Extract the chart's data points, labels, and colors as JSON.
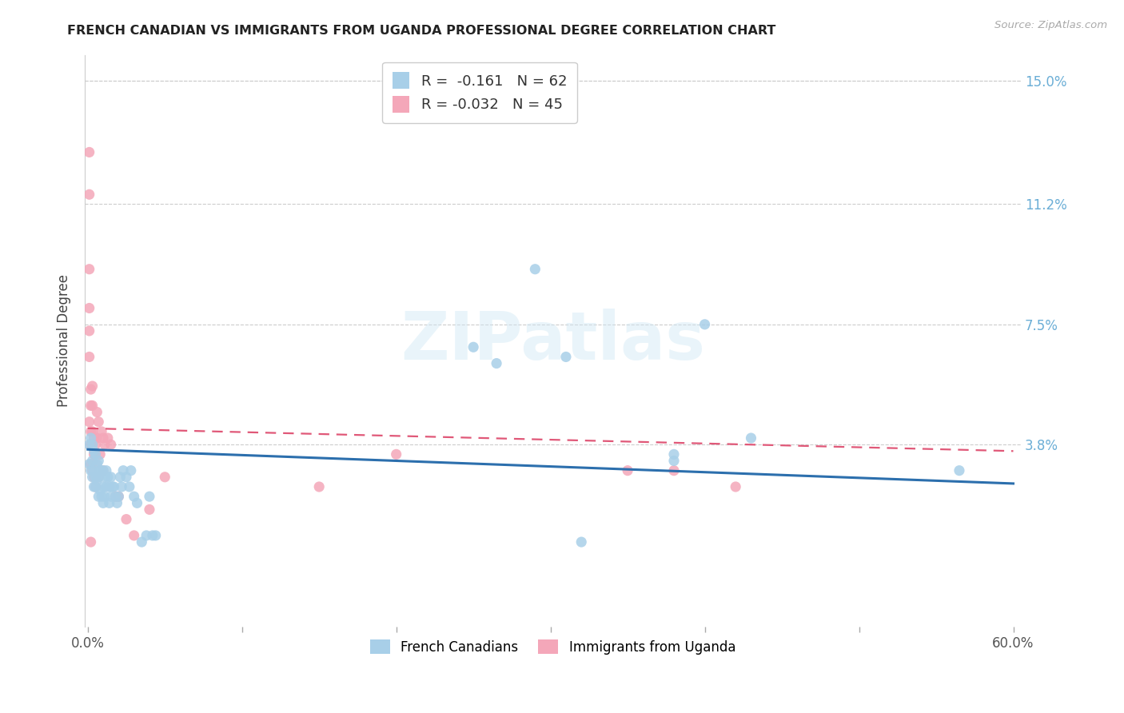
{
  "title": "FRENCH CANADIAN VS IMMIGRANTS FROM UGANDA PROFESSIONAL DEGREE CORRELATION CHART",
  "source": "Source: ZipAtlas.com",
  "ylabel": "Professional Degree",
  "right_ytick_labels": [
    "15.0%",
    "11.2%",
    "7.5%",
    "3.8%"
  ],
  "right_ytick_values": [
    0.15,
    0.112,
    0.075,
    0.038
  ],
  "xmin": -0.002,
  "xmax": 0.605,
  "ymin": -0.018,
  "ymax": 0.158,
  "legend_blue_r": "-0.161",
  "legend_blue_n": "62",
  "legend_pink_r": "-0.032",
  "legend_pink_n": "45",
  "blue_color": "#a8cfe8",
  "pink_color": "#f4a7b9",
  "blue_line_color": "#2c6fad",
  "pink_line_color": "#e05878",
  "blue_trend_x": [
    0.0,
    0.6
  ],
  "blue_trend_y": [
    0.0365,
    0.026
  ],
  "pink_trend_x": [
    0.0,
    0.6
  ],
  "pink_trend_y": [
    0.043,
    0.036
  ],
  "blue_scatter_x": [
    0.001,
    0.001,
    0.002,
    0.002,
    0.003,
    0.003,
    0.003,
    0.004,
    0.004,
    0.004,
    0.005,
    0.005,
    0.005,
    0.006,
    0.006,
    0.007,
    0.007,
    0.007,
    0.008,
    0.008,
    0.009,
    0.009,
    0.01,
    0.01,
    0.01,
    0.011,
    0.011,
    0.012,
    0.012,
    0.013,
    0.014,
    0.014,
    0.015,
    0.015,
    0.016,
    0.017,
    0.018,
    0.019,
    0.02,
    0.021,
    0.022,
    0.023,
    0.025,
    0.027,
    0.028,
    0.03,
    0.032,
    0.035,
    0.038,
    0.04,
    0.042,
    0.044,
    0.25,
    0.265,
    0.29,
    0.31,
    0.38,
    0.4,
    0.43,
    0.565,
    0.38,
    0.32
  ],
  "blue_scatter_y": [
    0.038,
    0.032,
    0.04,
    0.03,
    0.038,
    0.033,
    0.028,
    0.036,
    0.03,
    0.025,
    0.035,
    0.028,
    0.025,
    0.032,
    0.027,
    0.033,
    0.028,
    0.022,
    0.03,
    0.024,
    0.03,
    0.022,
    0.03,
    0.025,
    0.02,
    0.028,
    0.022,
    0.03,
    0.025,
    0.028,
    0.025,
    0.02,
    0.028,
    0.022,
    0.025,
    0.025,
    0.022,
    0.02,
    0.022,
    0.028,
    0.025,
    0.03,
    0.028,
    0.025,
    0.03,
    0.022,
    0.02,
    0.008,
    0.01,
    0.022,
    0.01,
    0.01,
    0.068,
    0.063,
    0.092,
    0.065,
    0.033,
    0.075,
    0.04,
    0.03,
    0.035,
    0.008
  ],
  "pink_scatter_x": [
    0.001,
    0.001,
    0.001,
    0.001,
    0.001,
    0.001,
    0.001,
    0.002,
    0.002,
    0.002,
    0.002,
    0.002,
    0.003,
    0.003,
    0.003,
    0.003,
    0.004,
    0.004,
    0.004,
    0.005,
    0.005,
    0.005,
    0.006,
    0.006,
    0.007,
    0.007,
    0.008,
    0.009,
    0.01,
    0.01,
    0.011,
    0.013,
    0.015,
    0.018,
    0.02,
    0.025,
    0.03,
    0.04,
    0.05,
    0.002,
    0.35,
    0.38,
    0.42,
    0.15,
    0.2
  ],
  "pink_scatter_y": [
    0.128,
    0.115,
    0.092,
    0.08,
    0.073,
    0.065,
    0.045,
    0.055,
    0.05,
    0.042,
    0.038,
    0.032,
    0.056,
    0.05,
    0.042,
    0.03,
    0.04,
    0.035,
    0.028,
    0.038,
    0.032,
    0.025,
    0.048,
    0.04,
    0.045,
    0.028,
    0.035,
    0.042,
    0.04,
    0.03,
    0.038,
    0.04,
    0.038,
    0.022,
    0.022,
    0.015,
    0.01,
    0.018,
    0.028,
    0.008,
    0.03,
    0.03,
    0.025,
    0.025,
    0.035
  ]
}
